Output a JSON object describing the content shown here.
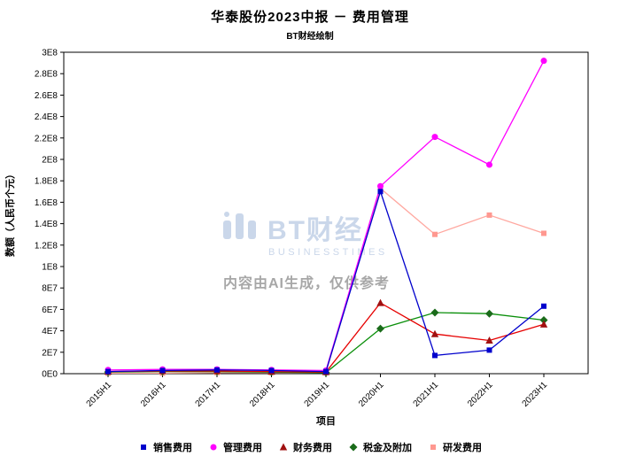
{
  "title": "华泰股份2023中报 － 费用管理",
  "subtitle": "BT财经绘制",
  "watermark": {
    "brand": "BT财经",
    "brand_sub": "BUSINESSTIMES",
    "disclaimer": "内容由AI生成，仅供参考",
    "brand_color": "#c5d3e8",
    "disclaimer_color": "#9e9e9e"
  },
  "chart_data": {
    "type": "line",
    "title": "华泰股份2023中报 － 费用管理",
    "xlabel": "项目",
    "ylabel": "数额（人民币个元）",
    "categories": [
      "2015H1",
      "2016H1",
      "2017H1",
      "2018H1",
      "2019H1",
      "2020H1",
      "2021H1",
      "2022H1",
      "2023H1"
    ],
    "ylim": [
      0,
      300000000
    ],
    "ytick_values": [
      0,
      20000000,
      40000000,
      60000000,
      80000000,
      100000000,
      120000000,
      140000000,
      160000000,
      180000000,
      200000000,
      220000000,
      240000000,
      260000000,
      280000000,
      300000000
    ],
    "ytick_labels": [
      "0E0",
      "2E7",
      "4E7",
      "6E7",
      "8E7",
      "1E8",
      "1.2E8",
      "1.4E8",
      "1.6E8",
      "1.8E8",
      "2E8",
      "2.2E8",
      "2.4E8",
      "2.6E8",
      "2.8E8",
      "3E8"
    ],
    "grid": false,
    "legend_position": "bottom",
    "series": [
      {
        "name": "销售费用",
        "color": "#0000cc",
        "marker": "square",
        "marker_color": "#0000cc",
        "values": [
          2000000,
          3000000,
          3500000,
          3000000,
          2000000,
          170000000,
          17000000,
          22000000,
          63000000
        ]
      },
      {
        "name": "管理费用",
        "color": "#ff00ff",
        "marker": "circle",
        "marker_color": "#ff00ff",
        "values": [
          3500000,
          4000000,
          4000000,
          3500000,
          3000000,
          175000000,
          221000000,
          195000000,
          292000000
        ]
      },
      {
        "name": "财务费用",
        "color": "#e60000",
        "marker": "triangle",
        "marker_color": "#a01010",
        "values": [
          2000000,
          2500000,
          2500000,
          2000000,
          1500000,
          66000000,
          37000000,
          31000000,
          46000000
        ]
      },
      {
        "name": "税金及附加",
        "color": "#0a8f0a",
        "marker": "diamond",
        "marker_color": "#1a6b1a",
        "values": [
          1500000,
          2000000,
          2000000,
          1500000,
          1000000,
          42000000,
          57000000,
          56000000,
          50000000
        ]
      },
      {
        "name": "研发费用",
        "color": "#ffa8a0",
        "marker": "square",
        "marker_color": "#ff9890",
        "values": [
          500000,
          500000,
          1000000,
          1000000,
          1500000,
          173000000,
          130000000,
          148000000,
          131000000
        ]
      }
    ]
  }
}
